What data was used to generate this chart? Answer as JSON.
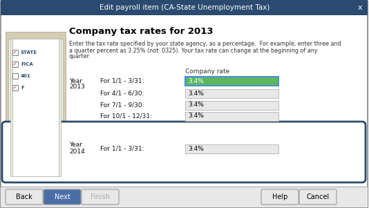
{
  "title": "Edit payroll item (CA-State Unemployment Tax)",
  "title_bar_color": "#2b4a6f",
  "title_text_color": "#ffffff",
  "bg_color": "#f0f0f0",
  "dialog_bg": "#ffffff",
  "border_color": "#888888",
  "heading": "Company tax rates for 2013",
  "body_text_line1": "Enter the tax rate specified by your state agency, as a percentage.  For example, enter three and",
  "body_text_line2": "a quarter percent as 3.25% (not .0325). Your tax rate can change at the beginning of any",
  "body_text_line3": "quarter.",
  "company_rate_label": "Company rate",
  "year_2013_label_line1": "Year",
  "year_2013_label_line2": "2013",
  "year_2014_label_line1": "Year",
  "year_2014_label_line2": "2014",
  "rows_2013": [
    {
      "label": "For 1/1 - 3/31:",
      "value": "3.4%",
      "active": true
    },
    {
      "label": "For 4/1 - 6/30:",
      "value": "3.4%",
      "active": false
    },
    {
      "label": "For 7/1 - 9/30:",
      "value": "3.4%",
      "active": false
    },
    {
      "label": "For 10/1 - 12/31:",
      "value": "3.4%",
      "active": false
    }
  ],
  "rows_2014": [
    {
      "label": "For 1/1 - 3/31:",
      "value": "3.4%",
      "active": false
    }
  ],
  "active_field_bg": "#5cb85c",
  "active_field_text": "#ffffff",
  "active_field_border": "#4a90d9",
  "inactive_field_bg": "#e8e8e8",
  "inactive_field_text": "#000000",
  "inactive_field_border": "#bbbbbb",
  "highlight_box_color": "#2b4a6f",
  "next_btn_color": "#4a6fa8",
  "next_btn_text_color": "#ffffff",
  "default_btn_bg": "#e8e8e8",
  "default_btn_text": "#000000",
  "disabled_btn_text": "#aaaaaa",
  "footer_bg": "#e8e8e8",
  "footer_border": "#aaaaaa",
  "doc_image_bg": "#c8c8b0",
  "text_color": "#333333",
  "text_color_dark": "#111111"
}
